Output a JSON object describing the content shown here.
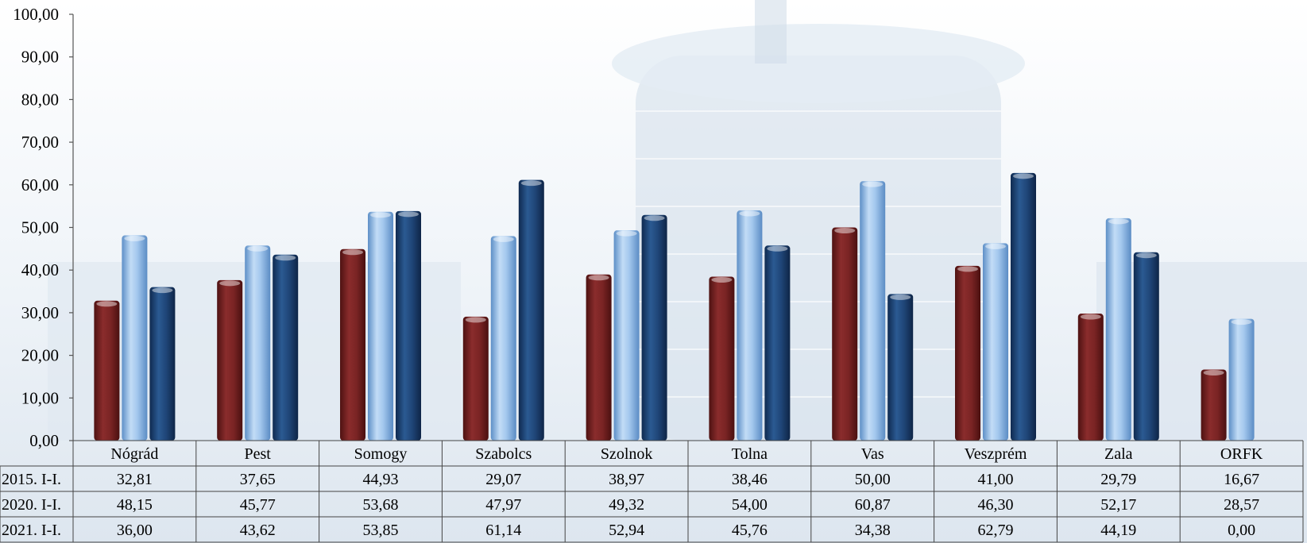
{
  "chart_data": {
    "type": "bar",
    "categories": [
      "Nógrád",
      "Pest",
      "Somogy",
      "Szabolcs",
      "Szolnok",
      "Tolna",
      "Vas",
      "Veszprém",
      "Zala",
      "ORFK"
    ],
    "series": [
      {
        "name": "2015. I-I.",
        "color": "#7a2424",
        "values": [
          32.81,
          37.65,
          44.93,
          29.07,
          38.97,
          38.46,
          50.0,
          41.0,
          29.79,
          16.67
        ]
      },
      {
        "name": "2020. I-I.",
        "color": "#8fbbe8",
        "values": [
          48.15,
          45.77,
          53.68,
          47.97,
          49.32,
          54.0,
          60.87,
          46.3,
          52.17,
          28.57
        ]
      },
      {
        "name": "2021. I-I.",
        "color": "#1f4577",
        "values": [
          36.0,
          43.62,
          53.85,
          61.14,
          52.94,
          45.76,
          34.38,
          62.79,
          44.19,
          0.0
        ]
      }
    ],
    "table_values": [
      [
        "32,81",
        "37,65",
        "44,93",
        "29,07",
        "38,97",
        "38,46",
        "50,00",
        "41,00",
        "29,79",
        "16,67"
      ],
      [
        "48,15",
        "45,77",
        "53,68",
        "47,97",
        "49,32",
        "54,00",
        "60,87",
        "46,30",
        "52,17",
        "28,57"
      ],
      [
        "36,00",
        "43,62",
        "53,85",
        "61,14",
        "52,94",
        "45,76",
        "34,38",
        "62,79",
        "44,19",
        "0,00"
      ]
    ],
    "ylim": [
      0,
      100
    ],
    "y_ticks": [
      0,
      10,
      20,
      30,
      40,
      50,
      60,
      70,
      80,
      90,
      100
    ],
    "y_tick_labels": [
      "0,00",
      "10,00",
      "20,00",
      "30,00",
      "40,00",
      "50,00",
      "60,00",
      "70,00",
      "80,00",
      "90,00",
      "100,00"
    ],
    "legend": "data-table",
    "grid": false
  }
}
